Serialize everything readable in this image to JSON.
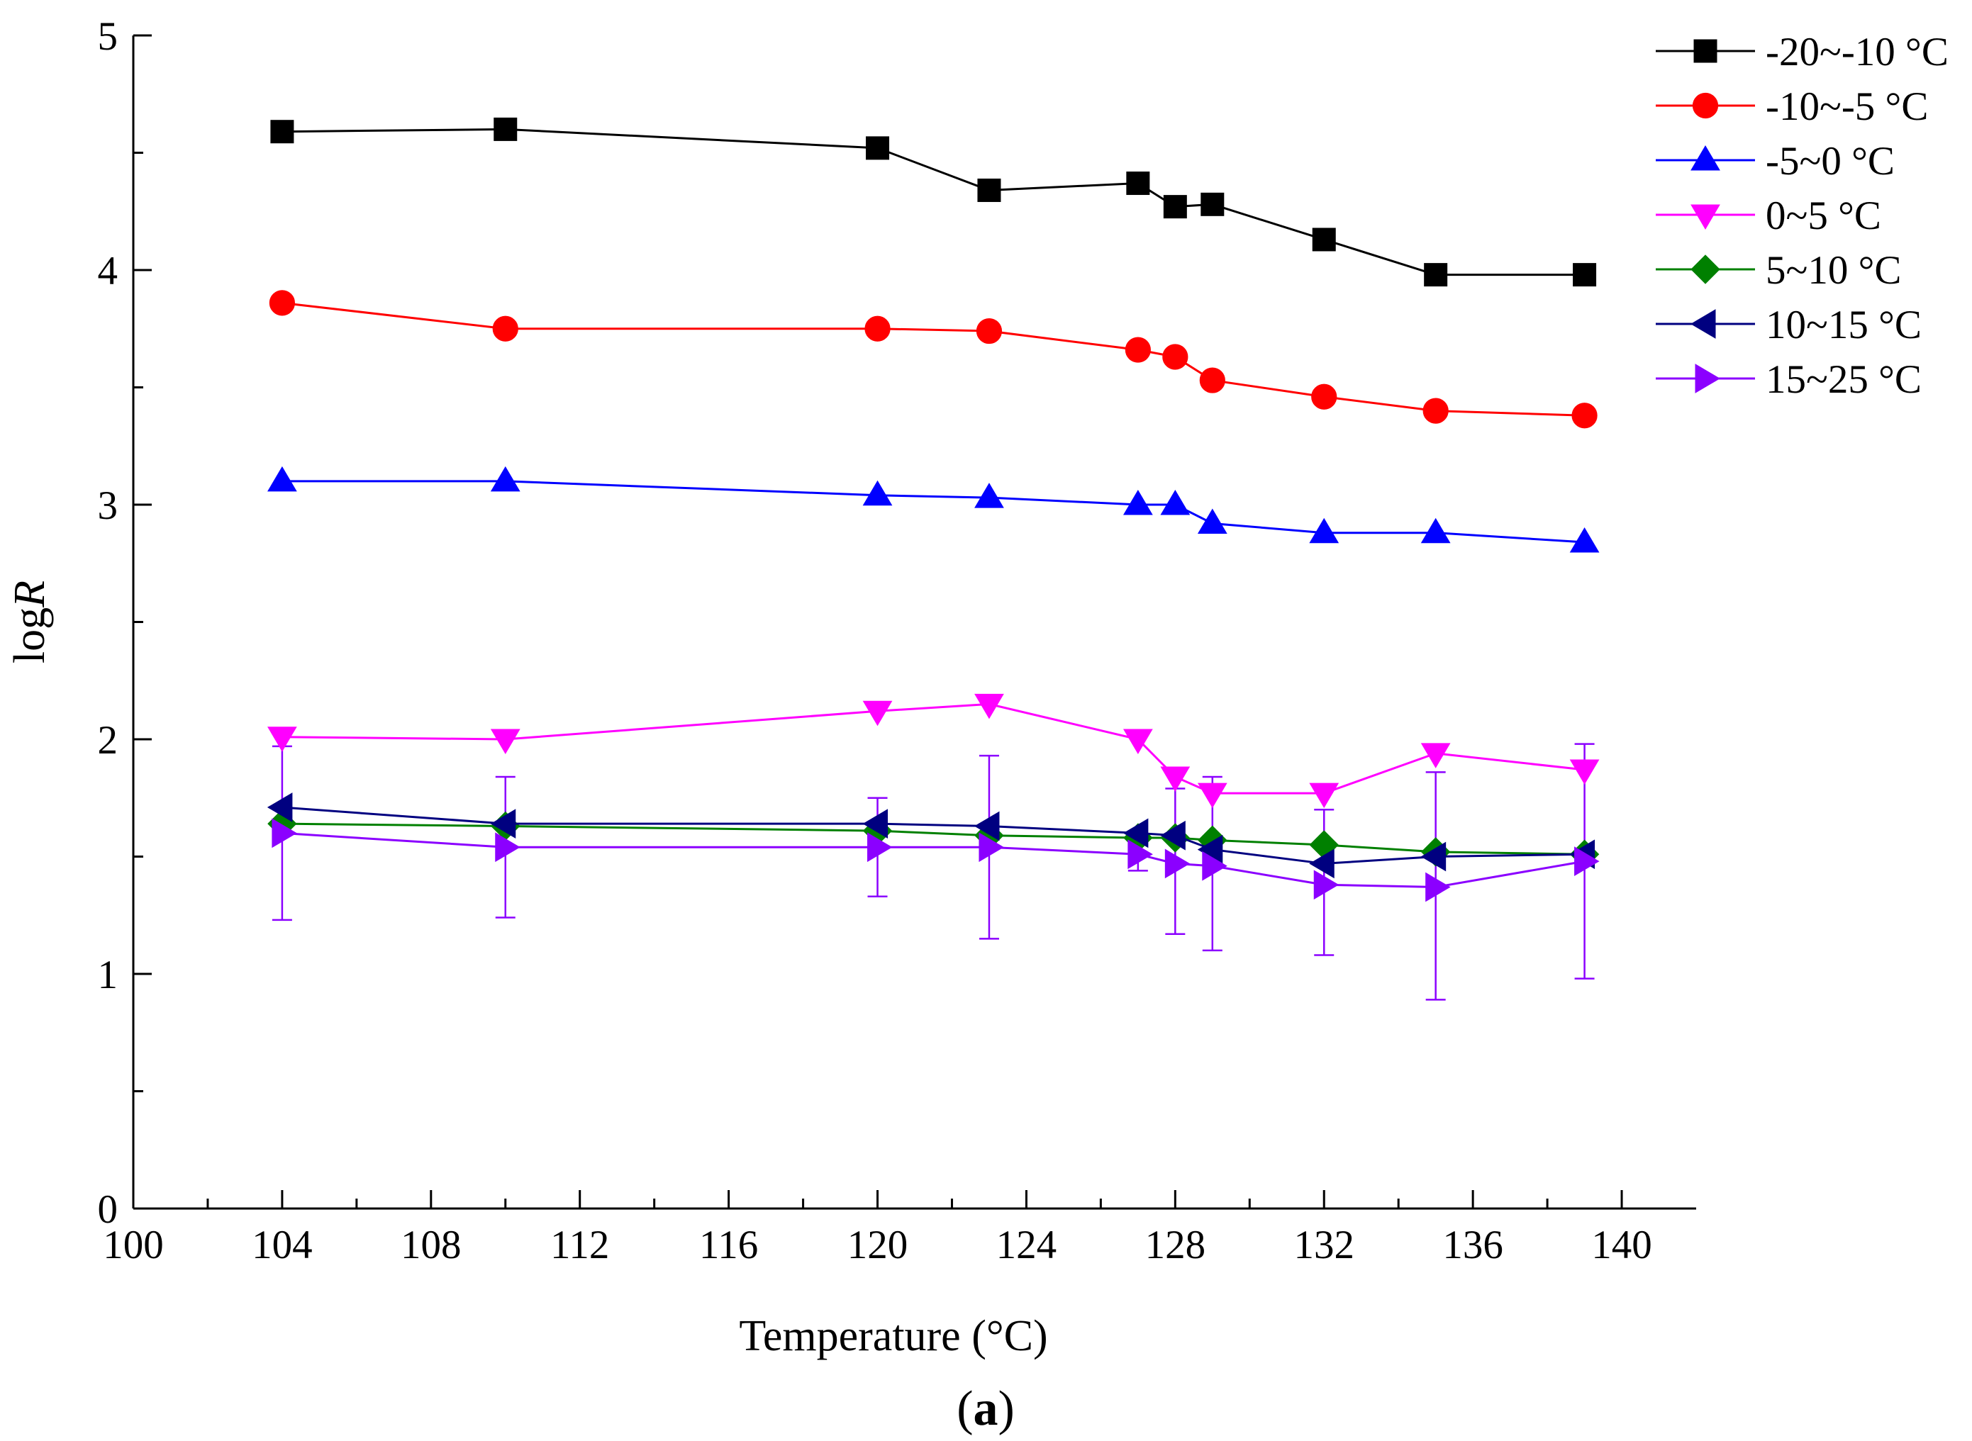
{
  "chart_data": {
    "type": "line",
    "title": "",
    "xlabel": "Temperature (°C)",
    "ylabel_prefix": "log",
    "ylabel_var": "R",
    "panel_label": "a",
    "xlim": [
      100,
      142
    ],
    "ylim": [
      0,
      5
    ],
    "x_ticks": [
      100,
      104,
      108,
      112,
      116,
      120,
      124,
      128,
      132,
      136,
      140
    ],
    "x_tick_labels": [
      "100",
      "104",
      "108",
      "112",
      "116",
      "120",
      "124",
      "128",
      "132",
      "136",
      "140"
    ],
    "y_ticks": [
      0,
      1,
      2,
      3,
      4,
      5
    ],
    "y_tick_labels": [
      "0",
      "1",
      "2",
      "3",
      "4",
      "5"
    ],
    "grid": false,
    "legend_position": "top-right",
    "x": [
      104,
      110,
      120,
      123,
      127,
      128,
      129,
      132,
      135,
      139
    ],
    "series": [
      {
        "name": "-20~-10 °C",
        "color": "#000000",
        "marker": "square",
        "values": [
          4.59,
          4.6,
          4.52,
          4.34,
          4.37,
          4.27,
          4.28,
          4.13,
          3.98,
          3.98
        ]
      },
      {
        "name": "-10~-5 °C",
        "color": "#ff0000",
        "marker": "circle",
        "values": [
          3.86,
          3.75,
          3.75,
          3.74,
          3.66,
          3.63,
          3.53,
          3.46,
          3.4,
          3.38
        ]
      },
      {
        "name": "-5~0 °C",
        "color": "#0000ff",
        "marker": "triangle-up",
        "values": [
          3.1,
          3.1,
          3.04,
          3.03,
          3.0,
          3.0,
          2.92,
          2.88,
          2.88,
          2.84
        ]
      },
      {
        "name": "0~5 °C",
        "color": "#ff00ff",
        "marker": "triangle-down",
        "values": [
          2.01,
          2.0,
          2.12,
          2.15,
          2.0,
          1.84,
          1.77,
          1.77,
          1.94,
          1.87
        ]
      },
      {
        "name": "5~10 °C",
        "color": "#008000",
        "marker": "diamond",
        "values": [
          1.64,
          1.63,
          1.61,
          1.59,
          1.58,
          1.58,
          1.57,
          1.55,
          1.52,
          1.51
        ]
      },
      {
        "name": "10~15 °C",
        "color": "#000080",
        "marker": "triangle-left",
        "values": [
          1.71,
          1.64,
          1.64,
          1.63,
          1.6,
          1.59,
          1.53,
          1.47,
          1.5,
          1.51
        ]
      },
      {
        "name": "15~25 °C",
        "color": "#8b00ff",
        "marker": "triangle-right",
        "values": [
          1.6,
          1.54,
          1.54,
          1.54,
          1.51,
          1.47,
          1.46,
          1.38,
          1.37,
          1.48
        ]
      }
    ],
    "error_bars": {
      "series": "15~25 °C",
      "color": "#8b00ff",
      "lower": [
        1.23,
        1.24,
        1.33,
        1.15,
        1.44,
        1.17,
        1.1,
        1.08,
        0.89,
        0.98
      ],
      "upper": [
        1.97,
        1.84,
        1.75,
        1.93,
        1.58,
        1.79,
        1.84,
        1.7,
        1.86,
        1.98
      ]
    }
  }
}
